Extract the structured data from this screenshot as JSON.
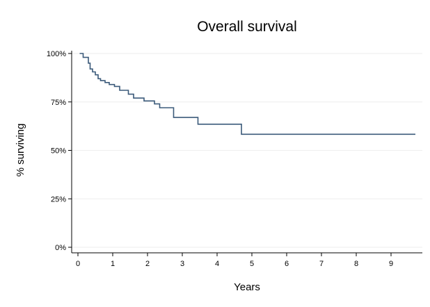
{
  "chart_data": {
    "type": "line",
    "title": "Overall survival",
    "xlabel": "Years",
    "ylabel": "% surviving",
    "xlim": [
      0,
      9.8
    ],
    "ylim": [
      0,
      1
    ],
    "x_ticks": [
      0,
      1,
      2,
      3,
      4,
      5,
      6,
      7,
      8,
      9
    ],
    "x_tick_labels": [
      "0",
      "1",
      "2",
      "3",
      "4",
      "5",
      "6",
      "7",
      "8",
      "9"
    ],
    "y_ticks": [
      0,
      0.25,
      0.5,
      0.75,
      1
    ],
    "y_tick_labels": [
      "0%",
      "25%",
      "50%",
      "75%",
      "100%"
    ],
    "grid": true,
    "line_color": "#3b5a7a",
    "step": "post",
    "series": [
      {
        "x": [
          0.05,
          0.15,
          0.3,
          0.35,
          0.42,
          0.5,
          0.58,
          0.65,
          0.78,
          0.9,
          1.05,
          1.2,
          1.45,
          1.6,
          1.9,
          2.2,
          2.35,
          2.75,
          3.45,
          4.7,
          9.7
        ],
        "y": [
          1.0,
          0.98,
          0.95,
          0.92,
          0.905,
          0.89,
          0.87,
          0.86,
          0.85,
          0.84,
          0.83,
          0.81,
          0.79,
          0.77,
          0.755,
          0.74,
          0.72,
          0.67,
          0.635,
          0.583,
          0.583
        ]
      }
    ]
  }
}
